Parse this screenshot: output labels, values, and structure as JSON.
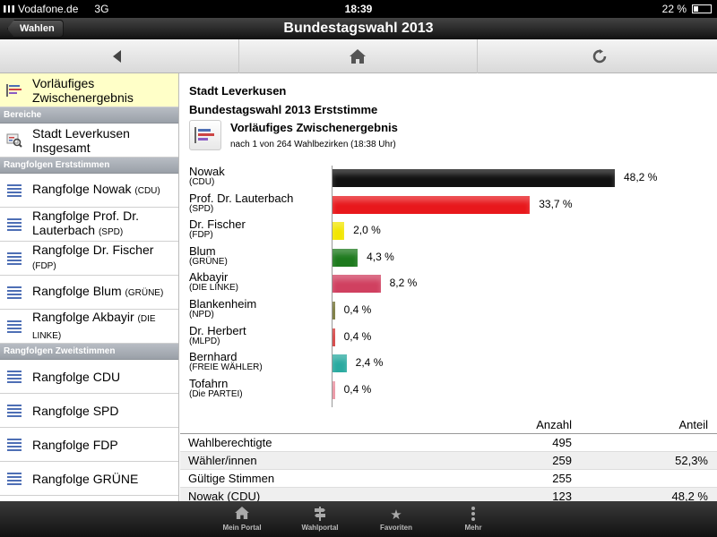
{
  "statusbar": {
    "carrier": "Vodafone.de",
    "network": "3G",
    "time": "18:39",
    "battery": "22 %"
  },
  "navbar": {
    "back_label": "Wahlen",
    "title": "Bundestagswahl 2013"
  },
  "toolbar": {
    "left_icon": "back-arrow-icon",
    "center_icon": "home-icon",
    "right_icon": "refresh-icon"
  },
  "sidebar": {
    "top_item": "Vorläufiges Zwischenergebnis",
    "sections": [
      {
        "title": "Bereiche",
        "items": [
          {
            "label": "Stadt Leverkusen Insgesamt",
            "sub": ""
          }
        ]
      },
      {
        "title": "Rangfolgen Erststimmen",
        "items": [
          {
            "label": "Rangfolge Nowak",
            "sub": "(CDU)"
          },
          {
            "label": "Rangfolge Prof. Dr. Lauterbach",
            "sub": "(SPD)"
          },
          {
            "label": "Rangfolge Dr. Fischer",
            "sub": "(FDP)"
          },
          {
            "label": "Rangfolge Blum",
            "sub": "(GRÜNE)"
          },
          {
            "label": "Rangfolge Akbayir",
            "sub": "(DIE LINKE)"
          }
        ]
      },
      {
        "title": "Rangfolgen Zweitstimmen",
        "items": [
          {
            "label": "Rangfolge CDU",
            "sub": ""
          },
          {
            "label": "Rangfolge SPD",
            "sub": ""
          },
          {
            "label": "Rangfolge FDP",
            "sub": ""
          },
          {
            "label": "Rangfolge GRÜNE",
            "sub": ""
          }
        ]
      }
    ]
  },
  "main": {
    "city": "Stadt Leverkusen",
    "election": "Bundestagswahl 2013 Erststimme",
    "result_title": "Vorläufiges Zwischenergebnis",
    "result_sub": "nach 1 von 264 Wahlbezirken (18:38 Uhr)"
  },
  "chart_data": {
    "type": "bar",
    "orientation": "horizontal",
    "categories": [
      "Nowak",
      "Prof. Dr. Lauterbach",
      "Dr. Fischer",
      "Blum",
      "Akbayir",
      "Blankenheim",
      "Dr. Herbert",
      "Bernhard",
      "Tofahrn"
    ],
    "parties": [
      "(CDU)",
      "(SPD)",
      "(FDP)",
      "(GRÜNE)",
      "(DIE LINKE)",
      "(NPD)",
      "(MLPD)",
      "(FREIE WÄHLER)",
      "(Die PARTEI)"
    ],
    "values": [
      48.2,
      33.7,
      2.0,
      4.3,
      8.2,
      0.4,
      0.4,
      2.4,
      0.4
    ],
    "labels": [
      "48,2 %",
      "33,7 %",
      "2,0 %",
      "4,3 %",
      "8,2 %",
      "0,4 %",
      "0,4 %",
      "2,4 %",
      "0,4 %"
    ],
    "colors": [
      "#111111",
      "#e8181c",
      "#f2e600",
      "#1e7a1e",
      "#d04060",
      "#6b6b2a",
      "#d03030",
      "#2aaaa0",
      "#e88a9a"
    ],
    "xlim": [
      0,
      50
    ]
  },
  "table": {
    "headers": [
      "",
      "Anzahl",
      "Anteil"
    ],
    "rows": [
      [
        "Wahlberechtigte",
        "495",
        ""
      ],
      [
        "Wähler/innen",
        "259",
        "52,3%"
      ],
      [
        "Gültige Stimmen",
        "255",
        ""
      ],
      [
        "Nowak (CDU)",
        "123",
        "48,2 %"
      ]
    ]
  },
  "tabbar": [
    {
      "label": "Mein Portal",
      "icon": "home-icon"
    },
    {
      "label": "Wahlportal",
      "icon": "signpost-icon"
    },
    {
      "label": "Favoriten",
      "icon": "star-icon"
    },
    {
      "label": "Mehr",
      "icon": "more-dots-icon"
    }
  ]
}
